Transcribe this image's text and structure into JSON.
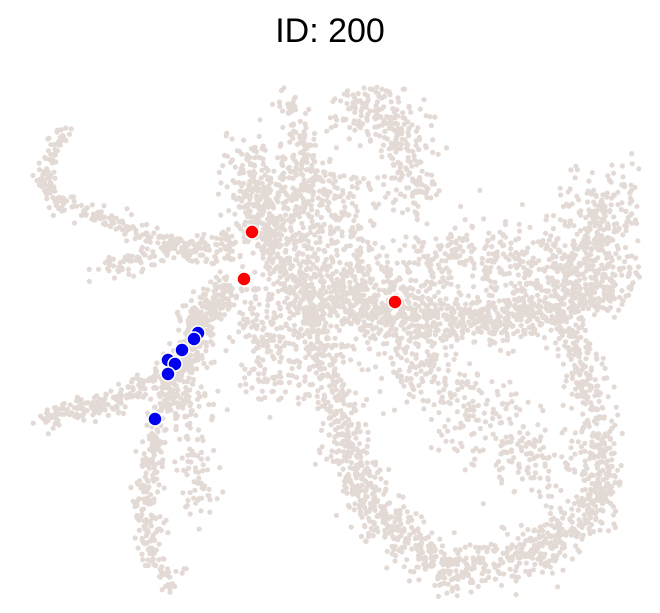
{
  "chart_data": {
    "type": "scatter",
    "title": "ID: 200",
    "xlabel": "",
    "ylabel": "",
    "axes_visible": false,
    "grid": false,
    "background_color": "#e3dad5",
    "series": [
      {
        "color": "#ff0000",
        "points": [
          {
            "x": 252,
            "y": 232
          },
          {
            "x": 244,
            "y": 279
          },
          {
            "x": 395,
            "y": 302
          }
        ]
      },
      {
        "color": "#0000ee",
        "points": [
          {
            "x": 198,
            "y": 333
          },
          {
            "x": 194,
            "y": 339
          },
          {
            "x": 182,
            "y": 350
          },
          {
            "x": 168,
            "y": 360
          },
          {
            "x": 175,
            "y": 364
          },
          {
            "x": 168,
            "y": 374
          },
          {
            "x": 155,
            "y": 419
          }
        ]
      }
    ]
  }
}
